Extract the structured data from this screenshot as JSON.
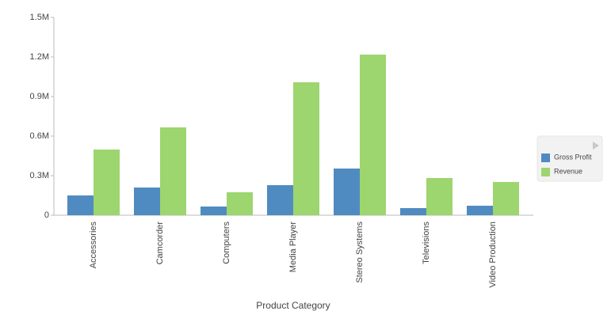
{
  "chart_data": {
    "type": "bar",
    "x_label": "Product Category",
    "categories": [
      "Accessories",
      "Camcorder",
      "Computers",
      "Media Player",
      "Stereo Systems",
      "Televisions",
      "Video Production"
    ],
    "series": [
      {
        "name": "Gross Profit",
        "color": "#4f8bc0",
        "values": [
          150000,
          210000,
          66000,
          228000,
          354000,
          54000,
          72000
        ]
      },
      {
        "name": "Revenue",
        "color": "#9dd56f",
        "values": [
          498000,
          666000,
          174000,
          1008000,
          1218000,
          282000,
          252000
        ]
      }
    ],
    "ylim": [
      0,
      1500000
    ],
    "yticks": [
      0,
      {
        "value": 300000,
        "label": "0.3M"
      },
      {
        "value": 600000,
        "label": "0.6M"
      },
      {
        "value": 900000,
        "label": "0.9M"
      },
      {
        "value": 1200000,
        "label": "1.2M"
      },
      {
        "value": 1500000,
        "label": "1.5M"
      }
    ],
    "legend": "right"
  }
}
